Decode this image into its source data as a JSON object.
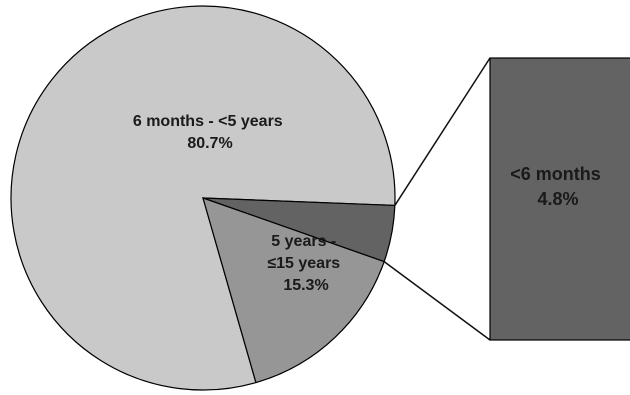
{
  "chart_data": {
    "type": "pie",
    "style": "bar-of-pie",
    "categories": [
      "6 months - <5 years",
      "5 years - ≤15 years",
      "<6 months"
    ],
    "values": [
      80.7,
      15.3,
      4.8
    ],
    "unit": "%",
    "colors": [
      "#c9c9c9",
      "#969696",
      "#636363"
    ],
    "exploded_slice": "<6 months",
    "labels": [
      {
        "lines": [
          "6 months -  <5 years",
          "80.7%"
        ]
      },
      {
        "lines": [
          "5 years -",
          "≤15 years",
          "15.3%"
        ]
      },
      {
        "lines": [
          "<6 months",
          "4.8%"
        ]
      }
    ]
  }
}
